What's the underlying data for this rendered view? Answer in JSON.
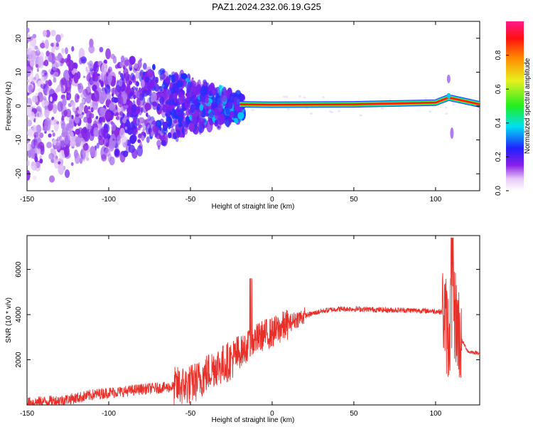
{
  "title": "PAZ1.2024.232.06.19.G25",
  "chart_data": [
    {
      "type": "heatmap",
      "xlabel": "Height of straight line (km)",
      "ylabel": "Frequency (Hz)",
      "xlim": [
        -150,
        127
      ],
      "ylim": [
        -25,
        25
      ],
      "xticks": [
        -150,
        -100,
        -50,
        0,
        50,
        100
      ],
      "yticks": [
        -20,
        -10,
        0,
        10,
        20
      ],
      "colorbar": {
        "label": "Normalized spectral amplitude",
        "range": [
          0.0,
          1.0
        ],
        "ticks": [
          0.0,
          0.2,
          0.4,
          0.6,
          0.8
        ]
      },
      "ridge": {
        "description_points": [
          {
            "x": -20,
            "y": 0.5
          },
          {
            "x": 0,
            "y": 0.4
          },
          {
            "x": 50,
            "y": 0.5
          },
          {
            "x": 100,
            "y": 1.0
          },
          {
            "x": 108,
            "y": 2.5
          },
          {
            "x": 127,
            "y": 0.5
          }
        ]
      }
    },
    {
      "type": "line",
      "xlabel": "Height of straight line (km)",
      "ylabel": "SNR (10 * v/v)",
      "xlim": [
        -150,
        127
      ],
      "ylim": [
        0,
        7500
      ],
      "xticks": [
        -150,
        -100,
        -50,
        0,
        50,
        100
      ],
      "yticks": [
        2000,
        4000,
        6000
      ],
      "color": "#e8302a",
      "series": [
        {
          "x": [
            -150,
            -140,
            -130,
            -120,
            -110,
            -100,
            -90,
            -80,
            -70,
            -60,
            -50,
            -45,
            -40,
            -35,
            -30,
            -25,
            -20,
            -15,
            -10,
            -5,
            0,
            5,
            10,
            15,
            20,
            30,
            40,
            50,
            60,
            70,
            80,
            90,
            100,
            105,
            108,
            110,
            112,
            115,
            120,
            127
          ],
          "values": [
            100,
            150,
            200,
            300,
            450,
            550,
            600,
            700,
            750,
            800,
            900,
            1100,
            1400,
            1700,
            1800,
            2000,
            2300,
            2600,
            2900,
            3100,
            3200,
            3400,
            3600,
            3800,
            3950,
            4150,
            4250,
            4250,
            4230,
            4200,
            4200,
            4180,
            4150,
            4100,
            3000,
            4500,
            4000,
            3000,
            2350,
            2300
          ]
        }
      ]
    }
  ]
}
